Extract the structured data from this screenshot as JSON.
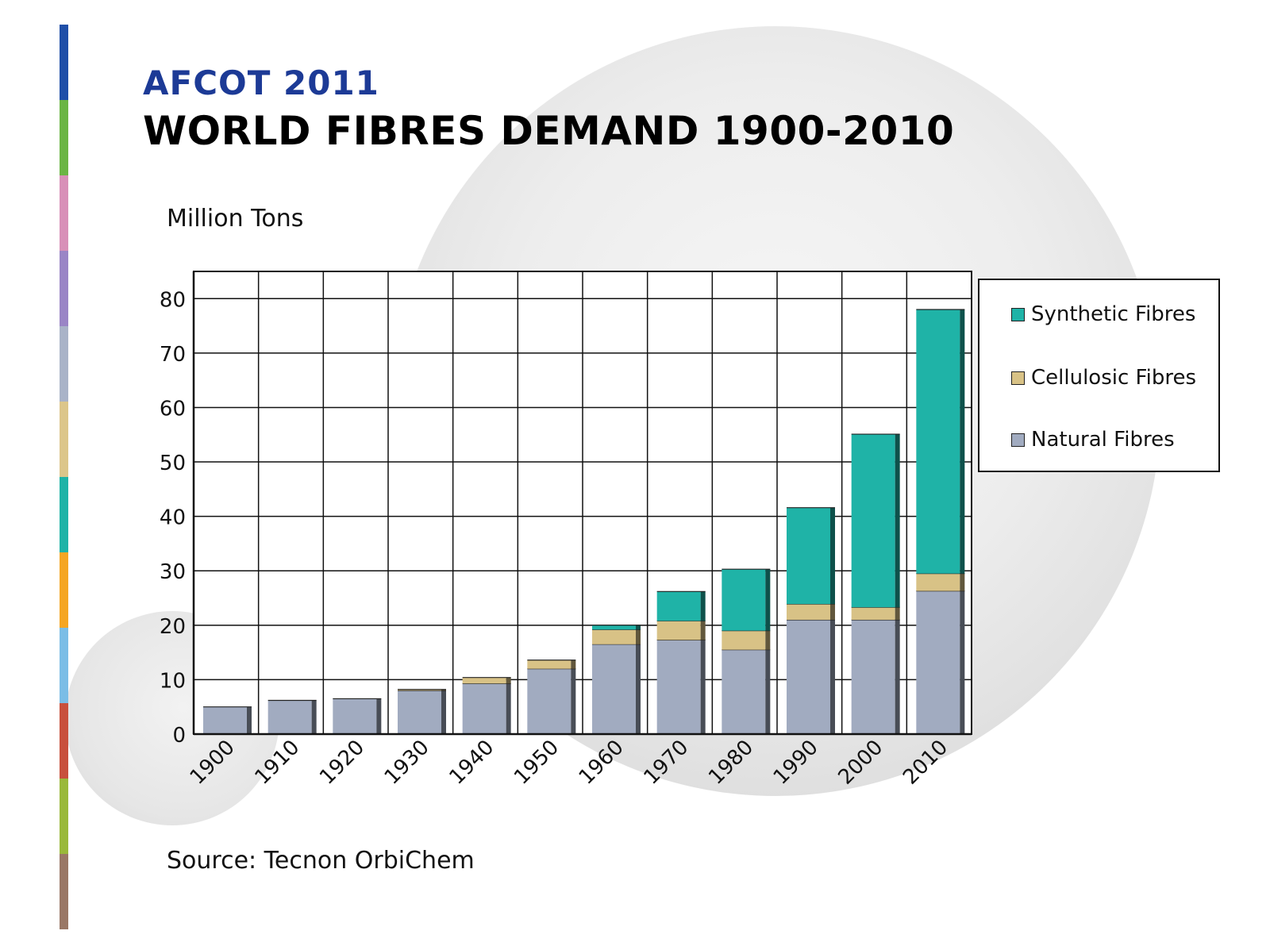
{
  "header": {
    "event": "AFCOT 2011",
    "title": "WORLD FIBRES DEMAND 1900-2010"
  },
  "source_text": "Source: Tecnon OrbiChem",
  "strip_colors": [
    "#1f4fa8",
    "#6bb544",
    "#d890b8",
    "#9a85c6",
    "#a9b3c8",
    "#dcc68a",
    "#1fb3a7",
    "#f5a623",
    "#7bbde6",
    "#c8503c",
    "#9ab93a",
    "#9a7866"
  ],
  "chart_data": {
    "type": "bar",
    "stacked": true,
    "title": "WORLD FIBRES DEMAND 1900-2010",
    "ylabel": "Million Tons",
    "xlabel": "",
    "ylim": [
      0,
      85
    ],
    "yticks": [
      0,
      10,
      20,
      30,
      40,
      50,
      60,
      70,
      80
    ],
    "grid": true,
    "legend_position": "right",
    "categories": [
      "1900",
      "1910",
      "1920",
      "1930",
      "1940",
      "1950",
      "1960",
      "1970",
      "1980",
      "1990",
      "2000",
      "2010"
    ],
    "series": [
      {
        "name": "Natural Fibres",
        "color": "#a1abc0",
        "values": [
          5,
          6.2,
          6.5,
          8,
          9.3,
          12,
          16.5,
          17.3,
          15.5,
          21,
          21,
          26.3
        ]
      },
      {
        "name": "Cellulosic Fibres",
        "color": "#d8c286",
        "values": [
          0,
          0,
          0,
          0.2,
          1.1,
          1.6,
          2.7,
          3.5,
          3.5,
          2.9,
          2.3,
          3.2
        ]
      },
      {
        "name": "Synthetic Fibres",
        "color": "#1fb3a7",
        "values": [
          0,
          0,
          0,
          0,
          0,
          0,
          0.8,
          5.4,
          11.3,
          17.7,
          31.8,
          48.5
        ]
      }
    ],
    "legend_entries": [
      "Synthetic Fibres",
      "Cellulosic Fibres",
      "Natural Fibres"
    ]
  }
}
